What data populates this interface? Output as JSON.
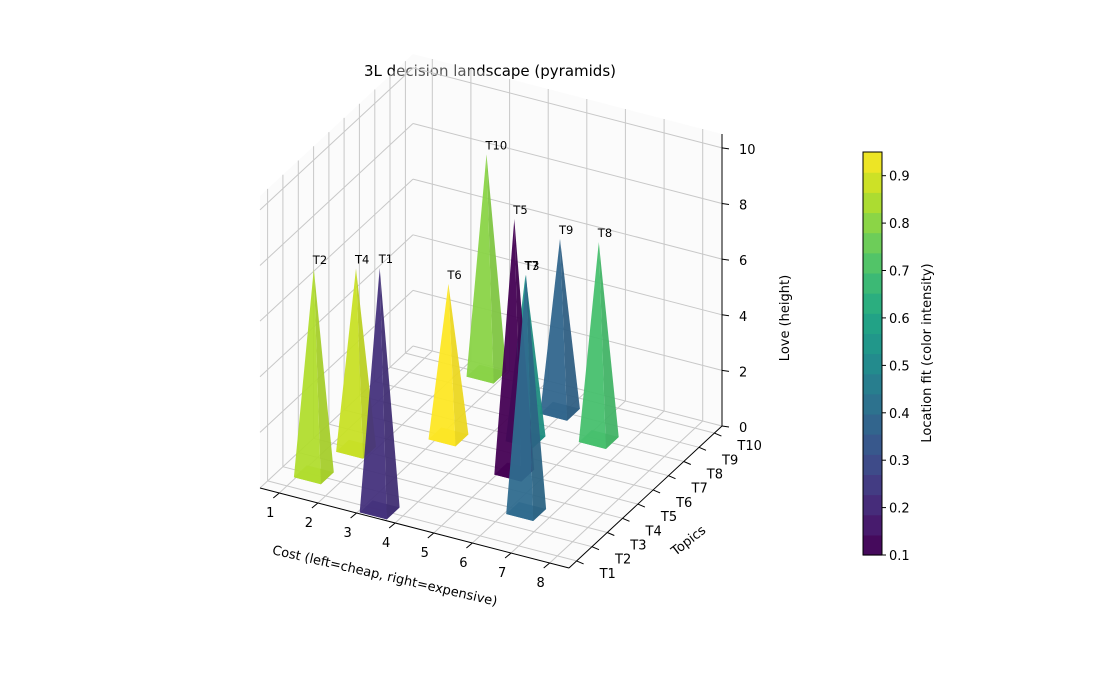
{
  "chart_data": {
    "type": "3d-bar",
    "title": "3L decision landscape (pyramids)",
    "xlabel": "Cost (left=cheap, right=expensive)",
    "ylabel": "Topics",
    "zlabel": "Love (height)",
    "colorbar_label": "Location fit (color intensity)",
    "x_ticks": [
      "1",
      "2",
      "3",
      "4",
      "5",
      "6",
      "7",
      "8"
    ],
    "y_ticks": [
      "T1",
      "T2",
      "T3",
      "T4",
      "T5",
      "T6",
      "T7",
      "T8",
      "T9",
      "T10"
    ],
    "z_ticks": [
      "0",
      "2",
      "4",
      "6",
      "8",
      "10"
    ],
    "colorbar_ticks": [
      "0.1",
      "0.2",
      "0.3",
      "0.4",
      "0.5",
      "0.6",
      "0.7",
      "0.8",
      "0.9"
    ],
    "xlim": [
      0.5,
      8.5
    ],
    "ylim": [
      0.5,
      10.5
    ],
    "zlim": [
      0,
      10.5
    ],
    "clim": [
      0.1,
      0.95
    ],
    "points": [
      {
        "label": "T1",
        "cost": 3.4,
        "topic": 1,
        "love": 8.7,
        "fit": 0.22
      },
      {
        "label": "T2",
        "cost": 1.3,
        "topic": 2,
        "love": 7.4,
        "fit": 0.85
      },
      {
        "label": "T3",
        "cost": 6.4,
        "topic": 3,
        "love": 8.5,
        "fit": 0.4
      },
      {
        "label": "T4",
        "cost": 1.6,
        "topic": 4,
        "love": 6.5,
        "fit": 0.88
      },
      {
        "label": "T5",
        "cost": 5.3,
        "topic": 5,
        "love": 9.1,
        "fit": 0.1
      },
      {
        "label": "T6",
        "cost": 3.2,
        "topic": 6,
        "love": 5.5,
        "fit": 0.95
      },
      {
        "label": "T7",
        "cost": 4.8,
        "topic": 7,
        "love": 5.9,
        "fit": 0.55
      },
      {
        "label": "T8",
        "cost": 6.3,
        "topic": 8,
        "love": 7.1,
        "fit": 0.7
      },
      {
        "label": "T9",
        "cost": 4.9,
        "topic": 9,
        "love": 6.2,
        "fit": 0.38
      },
      {
        "label": "T10",
        "cost": 2.6,
        "topic": 10,
        "love": 7.9,
        "fit": 0.8
      }
    ],
    "colormap": "viridis"
  }
}
